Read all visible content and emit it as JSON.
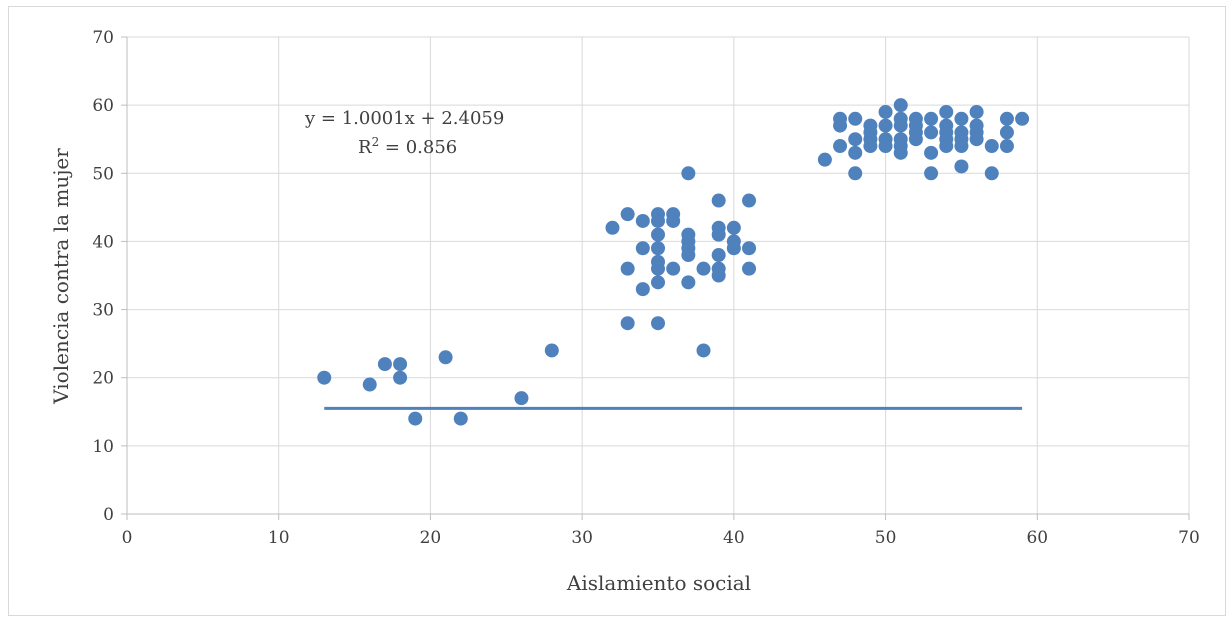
{
  "chart_data": {
    "type": "scatter",
    "xlabel": "Aislamiento social",
    "ylabel": "Violencia contra la mujer",
    "xlim": [
      0,
      70
    ],
    "ylim": [
      0,
      70
    ],
    "xticks": [
      0,
      10,
      20,
      30,
      40,
      50,
      60,
      70
    ],
    "yticks": [
      0,
      10,
      20,
      30,
      40,
      50,
      60,
      70
    ],
    "grid": true,
    "marker_color": "#4f81bd",
    "trendline": {
      "equation": "y = 1.0001x + 2.4059",
      "r2_prefix": "R",
      "r2_sup": "2",
      "r2_value": " = 0.856",
      "x_range": [
        13,
        59
      ],
      "y_value": 15.5,
      "color": "#4f81bd"
    },
    "points": [
      [
        13,
        20
      ],
      [
        16,
        19
      ],
      [
        17,
        22
      ],
      [
        18,
        22
      ],
      [
        18,
        20
      ],
      [
        19,
        14
      ],
      [
        21,
        23
      ],
      [
        22,
        14
      ],
      [
        26,
        17
      ],
      [
        28,
        24
      ],
      [
        32,
        42
      ],
      [
        33,
        44
      ],
      [
        33,
        36
      ],
      [
        33,
        28
      ],
      [
        34,
        43
      ],
      [
        34,
        39
      ],
      [
        34,
        33
      ],
      [
        35,
        44
      ],
      [
        35,
        43
      ],
      [
        35,
        41
      ],
      [
        35,
        39
      ],
      [
        35,
        37
      ],
      [
        35,
        36
      ],
      [
        35,
        34
      ],
      [
        35,
        28
      ],
      [
        36,
        44
      ],
      [
        36,
        43
      ],
      [
        36,
        36
      ],
      [
        37,
        50
      ],
      [
        37,
        41
      ],
      [
        37,
        40
      ],
      [
        37,
        39
      ],
      [
        37,
        38
      ],
      [
        37,
        34
      ],
      [
        38,
        36
      ],
      [
        38,
        24
      ],
      [
        39,
        46
      ],
      [
        39,
        42
      ],
      [
        39,
        41
      ],
      [
        39,
        38
      ],
      [
        39,
        36
      ],
      [
        39,
        35
      ],
      [
        40,
        42
      ],
      [
        40,
        40
      ],
      [
        40,
        39
      ],
      [
        41,
        46
      ],
      [
        41,
        39
      ],
      [
        41,
        36
      ],
      [
        46,
        52
      ],
      [
        47,
        58
      ],
      [
        47,
        57
      ],
      [
        47,
        54
      ],
      [
        48,
        58
      ],
      [
        48,
        55
      ],
      [
        48,
        53
      ],
      [
        48,
        50
      ],
      [
        49,
        57
      ],
      [
        49,
        56
      ],
      [
        49,
        55
      ],
      [
        49,
        54
      ],
      [
        50,
        59
      ],
      [
        50,
        57
      ],
      [
        50,
        55
      ],
      [
        50,
        54
      ],
      [
        51,
        60
      ],
      [
        51,
        58
      ],
      [
        51,
        57
      ],
      [
        51,
        55
      ],
      [
        51,
        54
      ],
      [
        51,
        53
      ],
      [
        52,
        58
      ],
      [
        52,
        57
      ],
      [
        52,
        56
      ],
      [
        52,
        55
      ],
      [
        53,
        58
      ],
      [
        53,
        56
      ],
      [
        53,
        53
      ],
      [
        53,
        50
      ],
      [
        54,
        59
      ],
      [
        54,
        57
      ],
      [
        54,
        56
      ],
      [
        54,
        55
      ],
      [
        54,
        54
      ],
      [
        55,
        58
      ],
      [
        55,
        56
      ],
      [
        55,
        55
      ],
      [
        55,
        54
      ],
      [
        55,
        51
      ],
      [
        56,
        59
      ],
      [
        56,
        57
      ],
      [
        56,
        56
      ],
      [
        56,
        55
      ],
      [
        57,
        54
      ],
      [
        57,
        50
      ],
      [
        58,
        58
      ],
      [
        58,
        56
      ],
      [
        58,
        54
      ],
      [
        59,
        58
      ]
    ]
  }
}
